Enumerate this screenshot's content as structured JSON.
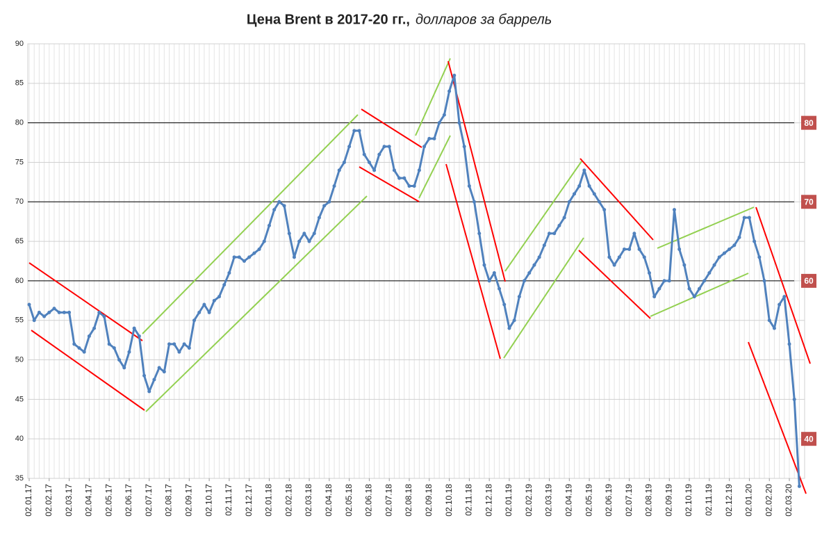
{
  "chart_data": {
    "type": "line",
    "title": "Цена Brent в 2017-20 гг.,",
    "subtitle": "долларов за баррель",
    "categories": [
      "02.01.17",
      null,
      null,
      null,
      "02.02.17",
      null,
      null,
      null,
      "02.03.17",
      null,
      null,
      null,
      "02.04.17",
      null,
      null,
      null,
      "02.05.17",
      null,
      null,
      null,
      "02.06.17",
      null,
      null,
      null,
      "02.07.17",
      null,
      null,
      null,
      "02.08.17",
      null,
      null,
      null,
      "02.09.17",
      null,
      null,
      null,
      "02.10.17",
      null,
      null,
      null,
      "02.11.17",
      null,
      null,
      null,
      "02.12.17",
      null,
      null,
      null,
      "02.01.18",
      null,
      null,
      null,
      "02.02.18",
      null,
      null,
      null,
      "02.03.18",
      null,
      null,
      null,
      "02.04.18",
      null,
      null,
      null,
      "02.05.18",
      null,
      null,
      null,
      "02.06.18",
      null,
      null,
      null,
      "02.07.18",
      null,
      null,
      null,
      "02.08.18",
      null,
      null,
      null,
      "02.09.18",
      null,
      null,
      null,
      "02.10.18",
      null,
      null,
      null,
      "02.11.18",
      null,
      null,
      null,
      "02.12.18",
      null,
      null,
      null,
      "02.01.19",
      null,
      null,
      null,
      "02.02.19",
      null,
      null,
      null,
      "02.03.19",
      null,
      null,
      null,
      "02.04.19",
      null,
      null,
      null,
      "02.05.19",
      null,
      null,
      null,
      "02.06.19",
      null,
      null,
      null,
      "02.07.19",
      null,
      null,
      null,
      "02.08.19",
      null,
      null,
      null,
      "02.09.19",
      null,
      null,
      null,
      "02.10.19",
      null,
      null,
      null,
      "02.11.19",
      null,
      null,
      null,
      "02.12.19",
      null,
      null,
      null,
      "02.01.20",
      null,
      null,
      null,
      "02.02.20",
      null,
      null,
      null,
      "02.03.20",
      null,
      null
    ],
    "series": [
      {
        "name": "Brent",
        "color": "#4f81bd",
        "values": [
          57,
          55,
          56,
          55.5,
          56,
          56.5,
          56,
          56,
          56,
          52,
          51.5,
          51,
          53,
          54,
          56,
          55.5,
          52,
          51.5,
          50,
          49,
          51,
          54,
          53,
          48,
          46,
          47.5,
          49,
          48.5,
          52,
          52,
          51,
          52,
          51.5,
          55,
          56,
          57,
          56,
          57.5,
          58,
          59.5,
          61,
          63,
          63,
          62.5,
          63,
          63.5,
          64,
          65,
          67,
          69,
          70,
          69.5,
          66,
          63,
          65,
          66,
          65,
          66,
          68,
          69.5,
          70,
          72,
          74,
          75,
          77,
          79,
          79,
          76,
          75,
          74,
          76,
          77,
          77,
          74,
          73,
          73,
          72,
          72,
          74,
          77,
          78,
          78,
          80,
          81,
          84,
          86,
          80,
          77,
          72,
          70,
          66,
          62,
          60,
          61,
          59,
          57,
          54,
          55,
          58,
          60,
          61,
          62,
          63,
          64.5,
          66,
          66,
          67,
          68,
          70,
          71,
          72,
          74,
          72,
          71,
          70,
          69,
          63,
          62,
          63,
          64,
          64,
          66,
          64,
          63,
          61,
          58,
          59,
          60,
          60,
          69,
          64,
          62,
          59,
          58,
          59,
          60,
          61,
          62,
          63,
          63.5,
          64,
          64.5,
          65.5,
          68,
          68,
          65,
          63,
          60,
          55,
          54,
          57,
          58,
          52,
          45,
          34
        ]
      }
    ],
    "ylim": [
      35,
      90
    ],
    "yticks": [
      35,
      40,
      45,
      50,
      55,
      60,
      65,
      70,
      75,
      80,
      85,
      90
    ],
    "grid": true,
    "reference_lines": [
      80,
      70,
      60
    ],
    "level_labels": [
      80,
      70,
      60,
      40
    ],
    "level_color": "#c0504d"
  }
}
